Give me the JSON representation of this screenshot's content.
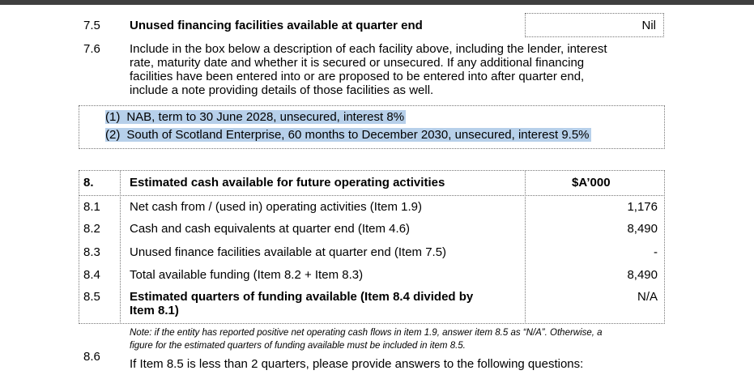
{
  "item_7_5": {
    "number": "7.5",
    "label": "Unused financing facilities available at quarter end",
    "value": "Nil"
  },
  "item_7_6": {
    "number": "7.6",
    "lines": [
      "Include in the box below a description of each facility above, including the lender, interest",
      "rate, maturity date and whether it is secured or unsecured. If any additional financing",
      "facilities have been entered into or are proposed to be entered into after quarter end,",
      "include a note providing details of those facilities as well."
    ]
  },
  "facilities": [
    {
      "marker": "(1)",
      "text": "NAB, term to 30 June 2028, unsecured, interest 8%"
    },
    {
      "marker": "(2)",
      "text": "South of Scotland Enterprise, 60 months to December 2030, unsecured, interest 9.5%"
    }
  ],
  "table": {
    "header": {
      "number": "8.",
      "label": "Estimated cash available for future operating activities",
      "unit": "$A’000"
    },
    "rows": [
      {
        "number": "8.1",
        "label": "Net cash from / (used in) operating activities (Item 1.9)",
        "value": "1,176"
      },
      {
        "number": "8.2",
        "label": "Cash and cash equivalents at quarter end (Item 4.6)",
        "value": "8,490"
      },
      {
        "number": "8.3",
        "label": "Unused finance facilities available at quarter end (Item 7.5)",
        "value": "-"
      },
      {
        "number": "8.4",
        "label": "Total available funding (Item 8.2 + Item 8.3)",
        "value": "8,490"
      },
      {
        "number": "8.5",
        "label_lines": [
          "Estimated quarters of funding available (Item 8.4 divided by",
          "Item 8.1)"
        ],
        "value": "N/A"
      }
    ]
  },
  "note": [
    "Note: if the entity has reported positive net operating cash flows in item 1.9, answer item 8.5 as “N/A”. Otherwise, a",
    "figure for the estimated quarters of funding available must be included in item 8.5."
  ],
  "item_8_6": {
    "number": "8.6",
    "question": "If Item 8.5 is less than 2 quarters, please provide answers to the following questions:"
  }
}
